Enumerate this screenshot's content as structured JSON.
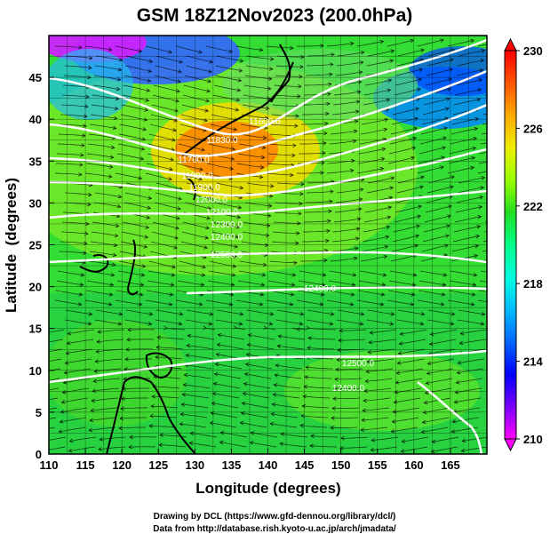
{
  "chart_data": {
    "type": "heatmap",
    "title": "GSM 18Z12Nov2023 (200.0hPa)",
    "xlabel": "Longitude (degrees)",
    "ylabel": "Latitude  (degrees)",
    "xlim": [
      110,
      170
    ],
    "ylim": [
      0,
      50
    ],
    "xticks": [
      "110",
      "115",
      "120",
      "125",
      "130",
      "135",
      "140",
      "145",
      "150",
      "155",
      "160",
      "165"
    ],
    "yticks": [
      "0",
      "5",
      "10",
      "15",
      "20",
      "25",
      "30",
      "35",
      "40",
      "45"
    ],
    "colorbar": {
      "min": 210,
      "max": 230,
      "ticks": [
        "210",
        "214",
        "218",
        "222",
        "226",
        "230"
      ],
      "colors": [
        "#ff00ff",
        "#7a00ff",
        "#0000ff",
        "#0066ff",
        "#00bbff",
        "#00ffe0",
        "#00ff88",
        "#22dd22",
        "#99ff00",
        "#eeee00",
        "#ffaa00",
        "#ff5500",
        "#ff0000"
      ]
    },
    "contour_labels": [
      "11830.0",
      "11700.0",
      "11900.0",
      "11900.0",
      "12000.0",
      "12100.0",
      "12300.0",
      "12400.0",
      "12500.0",
      "12400.0",
      "11600.0",
      "12500.0",
      "12400.0"
    ],
    "grid": true
  },
  "credits": {
    "line1": "Drawing by DCL (https://www.gfd-dennou.org/library/dcl/)",
    "line2": "Data from http://database.rish.kyoto-u.ac.jp/arch/jmadata/"
  }
}
